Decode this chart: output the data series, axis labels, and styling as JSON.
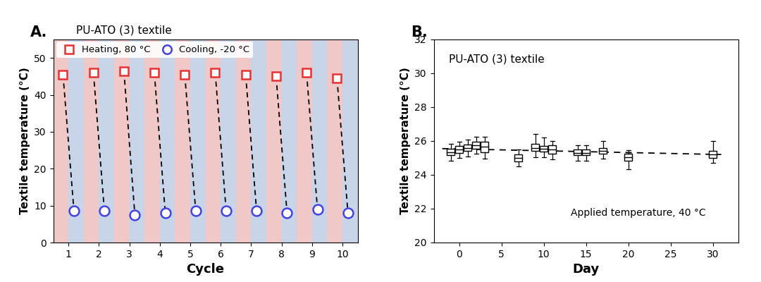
{
  "panel_A": {
    "title": "PU-ATO (3) textile",
    "xlabel": "Cycle",
    "ylabel": "Textile temperature (°C)",
    "ylim": [
      0,
      55
    ],
    "yticks": [
      0,
      10,
      20,
      30,
      40,
      50
    ],
    "xlim": [
      0.5,
      10.5
    ],
    "xticks": [
      1,
      2,
      3,
      4,
      5,
      6,
      7,
      8,
      9,
      10
    ],
    "heating_temp": [
      45.5,
      46.0,
      46.5,
      46.0,
      45.5,
      46.0,
      45.5,
      45.0,
      46.0,
      44.5
    ],
    "cooling_temp": [
      8.5,
      8.5,
      7.5,
      8.0,
      8.5,
      8.5,
      8.5,
      8.0,
      9.0,
      8.0
    ],
    "heating_color": "#e63232",
    "cooling_color": "#4444dd",
    "red_bg": "#f0c8c8",
    "blue_bg": "#c8d4e8",
    "legend_heating": "Heating, 80 °C",
    "legend_cooling": "Cooling, -20 °C"
  },
  "panel_B": {
    "title": "PU-ATO (3) textile",
    "xlabel": "Day",
    "ylabel": "Textile temperature (°C)",
    "annotation": "Applied temperature, 40 °C",
    "ylim": [
      20,
      32
    ],
    "yticks": [
      20,
      22,
      24,
      26,
      28,
      30,
      32
    ],
    "xlim": [
      -3,
      33
    ],
    "xticks": [
      0,
      5,
      10,
      15,
      20,
      25,
      30
    ],
    "days": [
      -1,
      0,
      1,
      2,
      3,
      7,
      9,
      10,
      11,
      14,
      15,
      17,
      20,
      30
    ],
    "medians": [
      25.35,
      25.5,
      25.6,
      25.75,
      25.65,
      25.0,
      25.6,
      25.55,
      25.5,
      25.3,
      25.3,
      25.4,
      25.05,
      25.2
    ],
    "q1": [
      25.15,
      25.3,
      25.4,
      25.55,
      25.35,
      24.8,
      25.4,
      25.38,
      25.25,
      25.15,
      25.15,
      25.25,
      24.85,
      25.0
    ],
    "q3": [
      25.55,
      25.7,
      25.8,
      25.95,
      25.95,
      25.2,
      25.82,
      25.72,
      25.75,
      25.48,
      25.48,
      25.58,
      25.25,
      25.4
    ],
    "whisker_low": [
      24.85,
      25.0,
      25.1,
      25.25,
      24.95,
      24.5,
      25.05,
      25.05,
      24.92,
      24.85,
      24.85,
      24.95,
      24.35,
      24.7
    ],
    "whisker_high": [
      25.85,
      25.95,
      26.1,
      26.25,
      26.25,
      25.5,
      26.4,
      26.2,
      26.0,
      25.75,
      25.75,
      26.0,
      25.45,
      26.0
    ],
    "trendline_x": [
      -2,
      31
    ],
    "trendline_y": [
      25.55,
      25.2
    ],
    "box_color": "#000000",
    "box_facecolor": "#ffffff"
  }
}
